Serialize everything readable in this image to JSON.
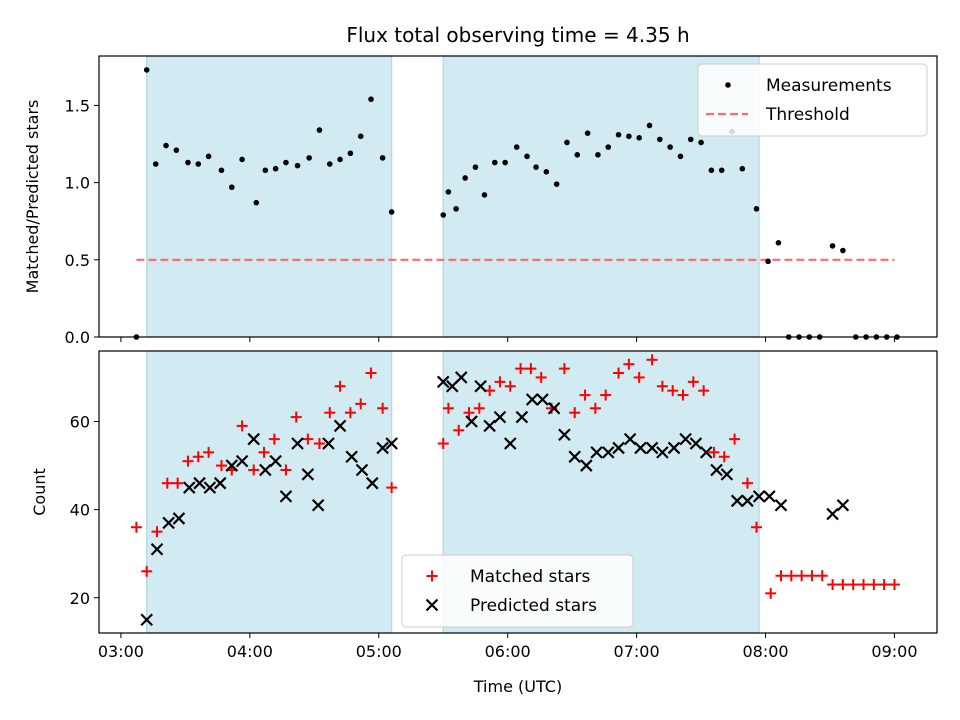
{
  "chart_data": {
    "title": "Flux total observing time = 4.35 h",
    "xlabel": "Time (UTC)",
    "x_ticks": [
      "03:00",
      "04:00",
      "05:00",
      "06:00",
      "07:00",
      "08:00",
      "09:00"
    ],
    "x_tick_hours": [
      3,
      4,
      5,
      6,
      7,
      8,
      9
    ],
    "xlim_hours": [
      2.83,
      9.33
    ],
    "shaded_spans_hours": [
      [
        3.2,
        5.1
      ],
      [
        5.5,
        7.95
      ]
    ],
    "colors": {
      "shade": "#add8e6",
      "measurement": "#000000",
      "threshold": "#ff6b6b",
      "matched": "#ff0000",
      "predicted": "#000000"
    },
    "panels": [
      {
        "type": "scatter",
        "ylabel": "Matched/Predicted stars",
        "ylim": [
          0,
          1.82
        ],
        "y_ticks": [
          0.0,
          0.5,
          1.0,
          1.5
        ],
        "y_tick_labels": [
          "0.0",
          "0.5",
          "1.0",
          "1.5"
        ],
        "legend_position": "top-right",
        "series": [
          {
            "name": "Measurements",
            "marker": "dot",
            "x_hours": [
              3.12,
              3.2,
              3.27,
              3.35,
              3.43,
              3.52,
              3.6,
              3.68,
              3.78,
              3.86,
              3.94,
              4.05,
              4.12,
              4.2,
              4.28,
              4.37,
              4.46,
              4.54,
              4.62,
              4.7,
              4.78,
              4.86,
              4.94,
              5.03,
              5.1,
              5.5,
              5.54,
              5.6,
              5.67,
              5.75,
              5.82,
              5.9,
              5.98,
              6.07,
              6.15,
              6.22,
              6.3,
              6.38,
              6.46,
              6.54,
              6.62,
              6.7,
              6.78,
              6.86,
              6.94,
              7.02,
              7.1,
              7.18,
              7.26,
              7.34,
              7.42,
              7.5,
              7.58,
              7.66,
              7.74,
              7.82,
              7.93,
              8.02,
              8.1,
              8.18,
              8.26,
              8.34,
              8.42,
              8.52,
              8.6,
              8.7,
              8.78,
              8.86,
              8.94,
              9.02
            ],
            "values": [
              0.0,
              1.73,
              1.12,
              1.24,
              1.21,
              1.13,
              1.12,
              1.17,
              1.08,
              0.97,
              1.15,
              0.87,
              1.08,
              1.09,
              1.13,
              1.11,
              1.16,
              1.34,
              1.12,
              1.15,
              1.19,
              1.3,
              1.54,
              1.16,
              0.81,
              0.79,
              0.94,
              0.83,
              1.03,
              1.1,
              0.92,
              1.13,
              1.13,
              1.23,
              1.17,
              1.1,
              1.07,
              0.99,
              1.26,
              1.18,
              1.32,
              1.18,
              1.23,
              1.31,
              1.3,
              1.29,
              1.37,
              1.28,
              1.23,
              1.17,
              1.28,
              1.26,
              1.08,
              1.08,
              1.33,
              1.09,
              0.83,
              0.49,
              0.61,
              0.0,
              0.0,
              0.0,
              0.0,
              0.59,
              0.56,
              0.0,
              0.0,
              0.0,
              0.0,
              0.0
            ]
          },
          {
            "name": "Threshold",
            "marker": "dashed-line",
            "x_hours": [
              3.12,
              9.0
            ],
            "values": [
              0.5,
              0.5
            ]
          }
        ]
      },
      {
        "type": "scatter",
        "ylabel": "Count",
        "ylim": [
          12,
          76
        ],
        "y_ticks": [
          20,
          40,
          60
        ],
        "y_tick_labels": [
          "20",
          "40",
          "60"
        ],
        "legend_position": "bottom-center",
        "series": [
          {
            "name": "Matched stars",
            "marker": "plus",
            "x_hours": [
              3.12,
              3.2,
              3.28,
              3.36,
              3.44,
              3.52,
              3.6,
              3.68,
              3.78,
              3.86,
              3.94,
              4.03,
              4.11,
              4.19,
              4.28,
              4.36,
              4.45,
              4.54,
              4.62,
              4.7,
              4.78,
              4.86,
              4.94,
              5.03,
              5.1,
              5.5,
              5.54,
              5.62,
              5.7,
              5.78,
              5.86,
              5.94,
              6.02,
              6.1,
              6.18,
              6.26,
              6.34,
              6.44,
              6.52,
              6.6,
              6.68,
              6.76,
              6.86,
              6.94,
              7.02,
              7.12,
              7.2,
              7.28,
              7.36,
              7.44,
              7.52,
              7.6,
              7.68,
              7.76,
              7.86,
              7.93,
              8.04,
              8.12,
              8.2,
              8.28,
              8.36,
              8.44,
              8.52,
              8.6,
              8.68,
              8.76,
              8.84,
              8.92,
              9.0
            ],
            "values": [
              36,
              26,
              35,
              46,
              46,
              51,
              52,
              53,
              50,
              49,
              59,
              49,
              53,
              56,
              49,
              61,
              56,
              55,
              62,
              68,
              62,
              64,
              71,
              63,
              45,
              55,
              63,
              58,
              62,
              63,
              67,
              69,
              68,
              72,
              72,
              70,
              63,
              72,
              62,
              66,
              63,
              66,
              71,
              73,
              70,
              74,
              68,
              67,
              66,
              69,
              67,
              53,
              52,
              56,
              46,
              36,
              21,
              25,
              25,
              25,
              25,
              25,
              23,
              23,
              23,
              23,
              23,
              23,
              23
            ]
          },
          {
            "name": "Predicted stars",
            "marker": "x",
            "x_hours": [
              3.2,
              3.28,
              3.37,
              3.45,
              3.53,
              3.61,
              3.69,
              3.77,
              3.86,
              3.94,
              4.03,
              4.12,
              4.2,
              4.28,
              4.37,
              4.45,
              4.53,
              4.61,
              4.7,
              4.79,
              4.87,
              4.95,
              5.03,
              5.1,
              5.5,
              5.57,
              5.64,
              5.72,
              5.79,
              5.86,
              5.94,
              6.02,
              6.11,
              6.19,
              6.27,
              6.36,
              6.44,
              6.52,
              6.61,
              6.69,
              6.78,
              6.86,
              6.95,
              7.03,
              7.12,
              7.2,
              7.29,
              7.38,
              7.46,
              7.54,
              7.62,
              7.7,
              7.78,
              7.86,
              7.95,
              8.03,
              8.12,
              8.52,
              8.6
            ],
            "values": [
              15,
              31,
              37,
              38,
              45,
              46,
              45,
              46,
              50,
              51,
              56,
              49,
              51,
              43,
              55,
              48,
              41,
              55,
              59,
              52,
              49,
              46,
              54,
              55,
              69,
              68,
              70,
              60,
              68,
              59,
              61,
              55,
              61,
              65,
              65,
              63,
              57,
              52,
              50,
              53,
              53,
              54,
              56,
              54,
              54,
              53,
              54,
              56,
              55,
              53,
              49,
              48,
              42,
              42,
              43,
              43,
              41,
              39,
              41
            ]
          }
        ]
      }
    ]
  }
}
